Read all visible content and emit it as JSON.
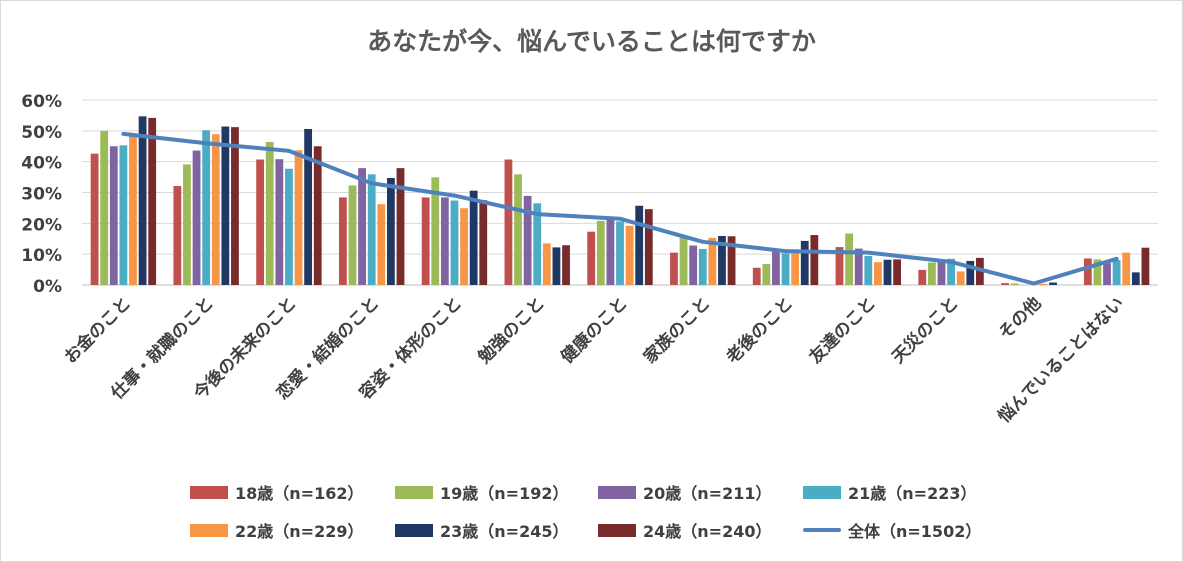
{
  "chart_data": {
    "type": "bar",
    "title": "あなたが今、悩んでいることは何ですか",
    "categories": [
      "お金のこと",
      "仕事・就職のこと",
      "今後の未来のこと",
      "恋愛・結婚のこと",
      "容姿・体形のこと",
      "勉強のこと",
      "健康のこと",
      "家族のこと",
      "老後のこと",
      "友達のこと",
      "天災のこと",
      "その他",
      "悩んでいることはない"
    ],
    "ylim": [
      0,
      60
    ],
    "yticks": [
      0,
      10,
      20,
      30,
      40,
      50,
      60
    ],
    "ytick_labels": [
      "0%",
      "10%",
      "20%",
      "30%",
      "40%",
      "50%",
      "60%"
    ],
    "grid": true,
    "legend_position": "bottom",
    "series": [
      {
        "name": "18歳（n=162）",
        "color": "#c0504d",
        "values": [
          42.6,
          32.1,
          40.7,
          28.4,
          28.4,
          40.7,
          17.3,
          10.5,
          5.6,
          12.3,
          4.9,
          0.6,
          8.6
        ]
      },
      {
        "name": "19歳（n=192）",
        "color": "#9bbb59",
        "values": [
          50.0,
          39.1,
          46.4,
          32.3,
          34.9,
          35.9,
          20.8,
          15.6,
          6.8,
          16.7,
          7.3,
          0.5,
          8.3
        ]
      },
      {
        "name": "20歳（n=211）",
        "color": "#8064a2",
        "values": [
          45.0,
          43.6,
          40.8,
          37.9,
          28.4,
          28.9,
          21.8,
          12.8,
          10.9,
          11.8,
          8.1,
          0.0,
          7.1
        ]
      },
      {
        "name": "21歳（n=223）",
        "color": "#4bacc6",
        "values": [
          45.3,
          50.2,
          37.7,
          35.9,
          27.4,
          26.5,
          20.6,
          11.7,
          10.3,
          9.4,
          8.5,
          0.0,
          8.1
        ]
      },
      {
        "name": "22歳（n=229）",
        "color": "#f79646",
        "values": [
          48.9,
          48.9,
          43.7,
          26.2,
          24.9,
          13.5,
          19.2,
          15.3,
          10.5,
          7.4,
          4.4,
          0.4,
          10.5
        ]
      },
      {
        "name": "23歳（n=245）",
        "color": "#1f3864",
        "values": [
          54.7,
          51.4,
          50.6,
          34.7,
          30.6,
          12.2,
          25.7,
          15.9,
          14.3,
          8.2,
          7.8,
          0.8,
          4.1
        ]
      },
      {
        "name": "24歳（n=240）",
        "color": "#772b2b",
        "values": [
          54.2,
          51.2,
          45.0,
          37.9,
          27.5,
          12.9,
          24.6,
          15.8,
          16.2,
          8.3,
          8.8,
          0.0,
          12.1
        ]
      }
    ],
    "line_series": {
      "name": "全体（n=1502）",
      "color": "#4f81bd",
      "values": [
        49.0,
        46.0,
        43.5,
        33.0,
        29.0,
        23.0,
        21.5,
        14.0,
        11.0,
        10.5,
        7.5,
        0.5,
        8.5
      ]
    }
  }
}
